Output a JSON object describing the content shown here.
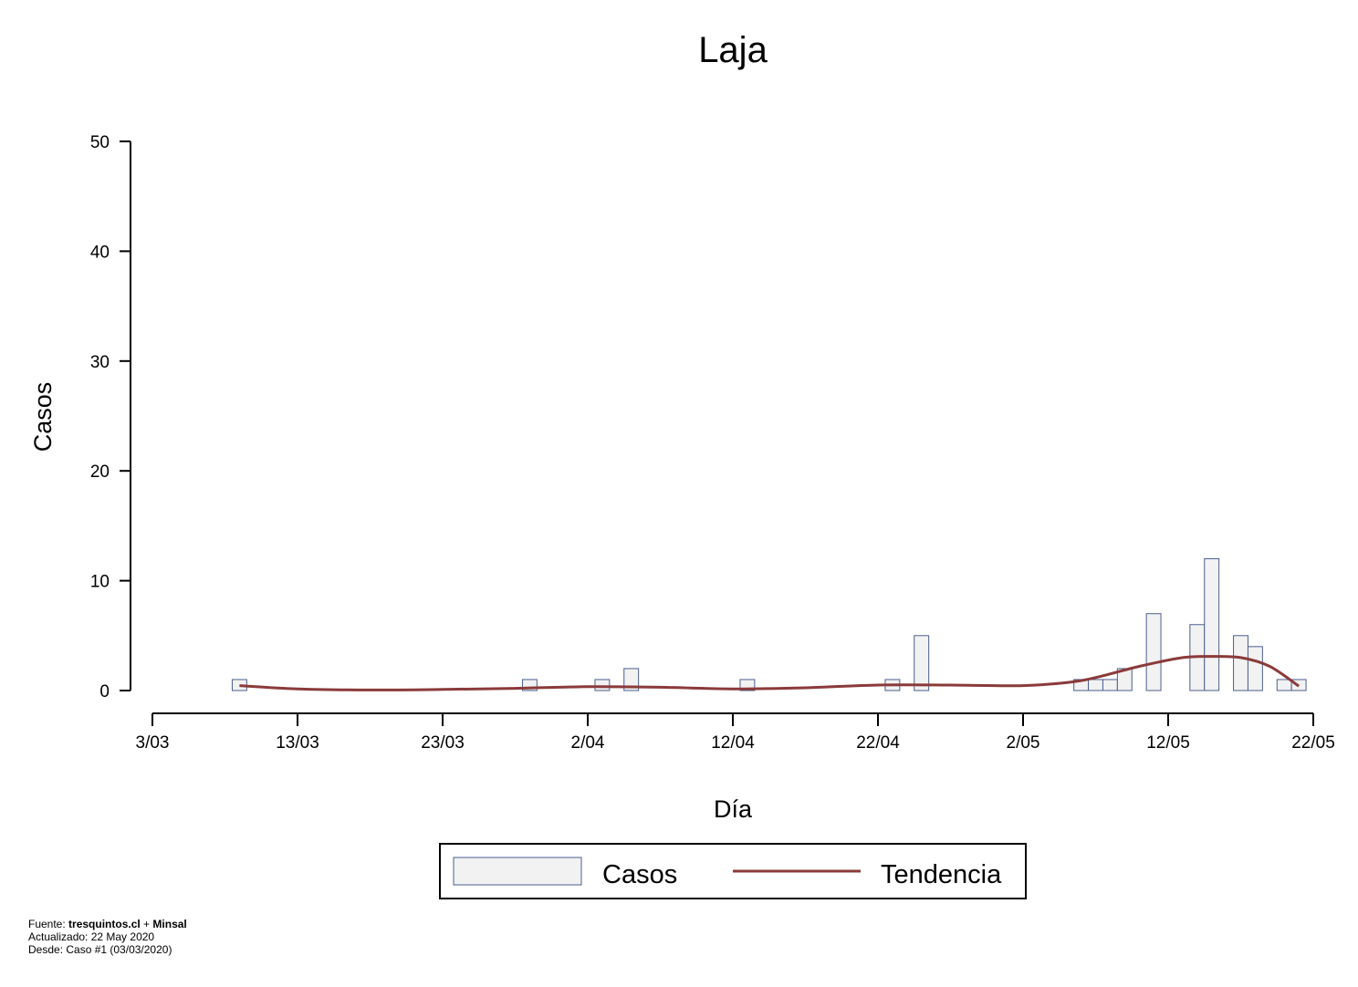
{
  "chart_data": {
    "type": "bar",
    "title": "Laja",
    "xlabel": "Día",
    "ylabel": "Casos",
    "ylim": [
      0,
      50
    ],
    "y_ticks": [
      0,
      10,
      20,
      30,
      40,
      50
    ],
    "x_range": [
      "2020-03-03",
      "2020-05-22"
    ],
    "x_ticks": [
      {
        "date": "2020-03-03",
        "label": "3/03"
      },
      {
        "date": "2020-03-13",
        "label": "13/03"
      },
      {
        "date": "2020-03-23",
        "label": "23/03"
      },
      {
        "date": "2020-04-02",
        "label": "2/04"
      },
      {
        "date": "2020-04-12",
        "label": "12/04"
      },
      {
        "date": "2020-04-22",
        "label": "22/04"
      },
      {
        "date": "2020-05-02",
        "label": "2/05"
      },
      {
        "date": "2020-05-12",
        "label": "12/05"
      },
      {
        "date": "2020-05-22",
        "label": "22/05"
      }
    ],
    "series": [
      {
        "name": "Casos",
        "type": "bar",
        "color": "#f2f2f2",
        "edge_color": "#4a5f8e",
        "x": [
          "2020-03-09",
          "2020-03-29",
          "2020-04-03",
          "2020-04-05",
          "2020-04-13",
          "2020-04-23",
          "2020-04-25",
          "2020-05-06",
          "2020-05-07",
          "2020-05-08",
          "2020-05-09",
          "2020-05-11",
          "2020-05-14",
          "2020-05-15",
          "2020-05-17",
          "2020-05-18",
          "2020-05-20",
          "2020-05-21"
        ],
        "values": [
          1,
          1,
          1,
          2,
          1,
          1,
          5,
          1,
          1,
          1,
          2,
          7,
          6,
          12,
          5,
          4,
          1,
          1
        ]
      },
      {
        "name": "Tendencia",
        "type": "line",
        "color": "#8b3a3a",
        "x": [
          "2020-03-09",
          "2020-03-13",
          "2020-03-18",
          "2020-03-23",
          "2020-03-28",
          "2020-04-02",
          "2020-04-07",
          "2020-04-12",
          "2020-04-17",
          "2020-04-22",
          "2020-04-27",
          "2020-05-02",
          "2020-05-06",
          "2020-05-10",
          "2020-05-13",
          "2020-05-15",
          "2020-05-17",
          "2020-05-19",
          "2020-05-21"
        ],
        "values": [
          0.45,
          0.15,
          0.05,
          0.1,
          0.2,
          0.35,
          0.3,
          0.15,
          0.25,
          0.5,
          0.5,
          0.45,
          0.9,
          2.2,
          3.0,
          3.1,
          3.0,
          2.2,
          0.4
        ]
      }
    ],
    "legend": {
      "placement": "bottom",
      "entries": [
        "Casos",
        "Tendencia"
      ]
    },
    "grid": false
  },
  "footer": {
    "source_prefix": "Fuente: ",
    "source_site": "tresquintos.cl",
    "source_sep": " + ",
    "source_org": "Minsal",
    "updated": "Actualizado: 22 May 2020",
    "since": "Desde: Caso #1  (03/03/2020)"
  }
}
